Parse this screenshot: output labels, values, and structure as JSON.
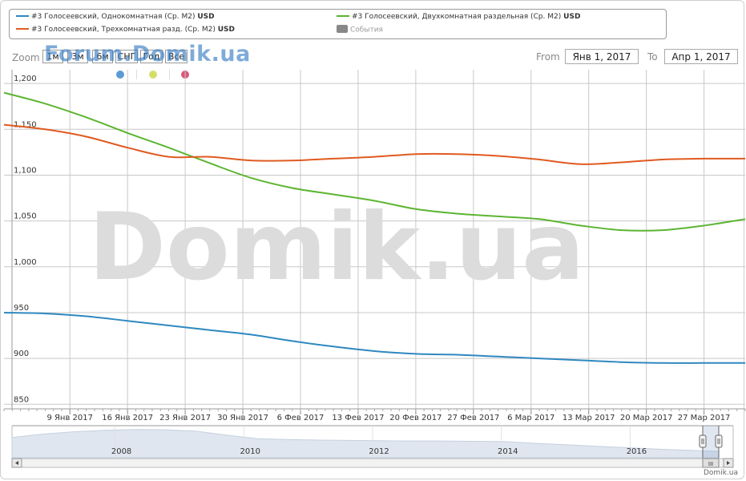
{
  "legend": {
    "items": [
      {
        "text": "#3 Голосеевский, Однокомнатная (Ср. М2)",
        "unit": "USD",
        "color": "#2f88c0"
      },
      {
        "text": "#3 Голосеевский, Двухкомнатная раздельная (Ср. М2)",
        "unit": "USD",
        "color": "#5cb531"
      },
      {
        "text": "#3 Голосеевский, Трехкомнатная разд. (Ср. М2)",
        "unit": "USD",
        "color": "#e05a20"
      },
      {
        "text": "События",
        "unit": "",
        "color": "#888888"
      }
    ]
  },
  "toolbar": {
    "zoom_label": "Zoom",
    "zoom_buttons": [
      "1м",
      "3м",
      "6м",
      "СНГ",
      "Год",
      "Все"
    ],
    "brand": "Forum.Domik.ua",
    "from_label": "From",
    "from_value": "Янв 1, 2017",
    "to_label": "To",
    "to_value": "Апр 1, 2017",
    "event_dot_colors": [
      "#5b9bd5",
      "#d6de6a",
      "#d9587a"
    ]
  },
  "watermark": "Domik.ua",
  "footer": "Domik.ua",
  "chart_data": {
    "type": "line",
    "y_tick_labels": [
      "1,200",
      "1,150",
      "1,100",
      "1,050",
      "1,000",
      "950",
      "900",
      "850"
    ],
    "y_ticks": [
      1200,
      1150,
      1100,
      1050,
      1000,
      950,
      900,
      850
    ],
    "ylim": [
      845,
      1215
    ],
    "x_tick_labels": [
      "9 Янв 2017",
      "16 Янв 2017",
      "23 Янв 2017",
      "30 Янв 2017",
      "6 Фев 2017",
      "13 Фев 2017",
      "20 Фев 2017",
      "27 Фев 2017",
      "6 Мар 2017",
      "13 Мар 2017",
      "20 Мар 2017",
      "27 Мар 2017"
    ],
    "grid": true,
    "series": [
      {
        "name": "#3 Голосеевский, Однокомнатная (Ср. М2)",
        "color": "#2f88c0",
        "x": [
          "2017-01-01",
          "2017-01-06",
          "2017-01-11",
          "2017-01-16",
          "2017-01-21",
          "2017-01-26",
          "2017-01-31",
          "2017-02-05",
          "2017-02-10",
          "2017-02-15",
          "2017-02-20",
          "2017-02-25",
          "2017-03-02",
          "2017-03-07",
          "2017-03-12",
          "2017-03-17",
          "2017-03-22",
          "2017-03-27",
          "2017-04-01"
        ],
        "values": [
          950,
          949,
          946,
          941,
          936,
          931,
          926,
          919,
          913,
          908,
          905,
          904,
          902,
          900,
          898,
          896,
          895,
          895,
          895
        ]
      },
      {
        "name": "#3 Голосеевский, Двухкомнатная раздельная (Ср. М2)",
        "color": "#5cb531",
        "x": [
          "2017-01-01",
          "2017-01-06",
          "2017-01-11",
          "2017-01-16",
          "2017-01-21",
          "2017-01-26",
          "2017-01-31",
          "2017-02-05",
          "2017-02-10",
          "2017-02-15",
          "2017-02-20",
          "2017-02-25",
          "2017-03-02",
          "2017-03-07",
          "2017-03-12",
          "2017-03-17",
          "2017-03-22",
          "2017-03-27",
          "2017-04-01"
        ],
        "values": [
          1190,
          1178,
          1163,
          1146,
          1130,
          1113,
          1097,
          1086,
          1079,
          1072,
          1063,
          1058,
          1055,
          1052,
          1045,
          1040,
          1040,
          1045,
          1052
        ]
      },
      {
        "name": "#3 Голосеевский, Трехкомнатная разд. (Ср. М2)",
        "color": "#e05a20",
        "x": [
          "2017-01-01",
          "2017-01-06",
          "2017-01-11",
          "2017-01-16",
          "2017-01-21",
          "2017-01-26",
          "2017-01-31",
          "2017-02-05",
          "2017-02-10",
          "2017-02-15",
          "2017-02-20",
          "2017-02-25",
          "2017-03-02",
          "2017-03-07",
          "2017-03-12",
          "2017-03-17",
          "2017-03-22",
          "2017-03-27",
          "2017-04-01"
        ],
        "values": [
          1155,
          1150,
          1142,
          1130,
          1120,
          1120,
          1116,
          1116,
          1118,
          1120,
          1123,
          1123,
          1121,
          1117,
          1112,
          1114,
          1117,
          1118,
          1118
        ]
      }
    ]
  },
  "navigator": {
    "year_labels": [
      "2008",
      "2010",
      "2012",
      "2014",
      "2016"
    ],
    "years": [
      2008,
      2010,
      2012,
      2014,
      2016
    ],
    "range": [
      2006.4,
      2017.6
    ],
    "profile": [
      0.7,
      0.82,
      0.9,
      0.95,
      0.98,
      0.97,
      0.92,
      0.78,
      0.66,
      0.63,
      0.61,
      0.6,
      0.59,
      0.58,
      0.58,
      0.57,
      0.56,
      0.5,
      0.45,
      0.4,
      0.35,
      0.3,
      0.26,
      0.22
    ],
    "scroll_grip": "III"
  }
}
